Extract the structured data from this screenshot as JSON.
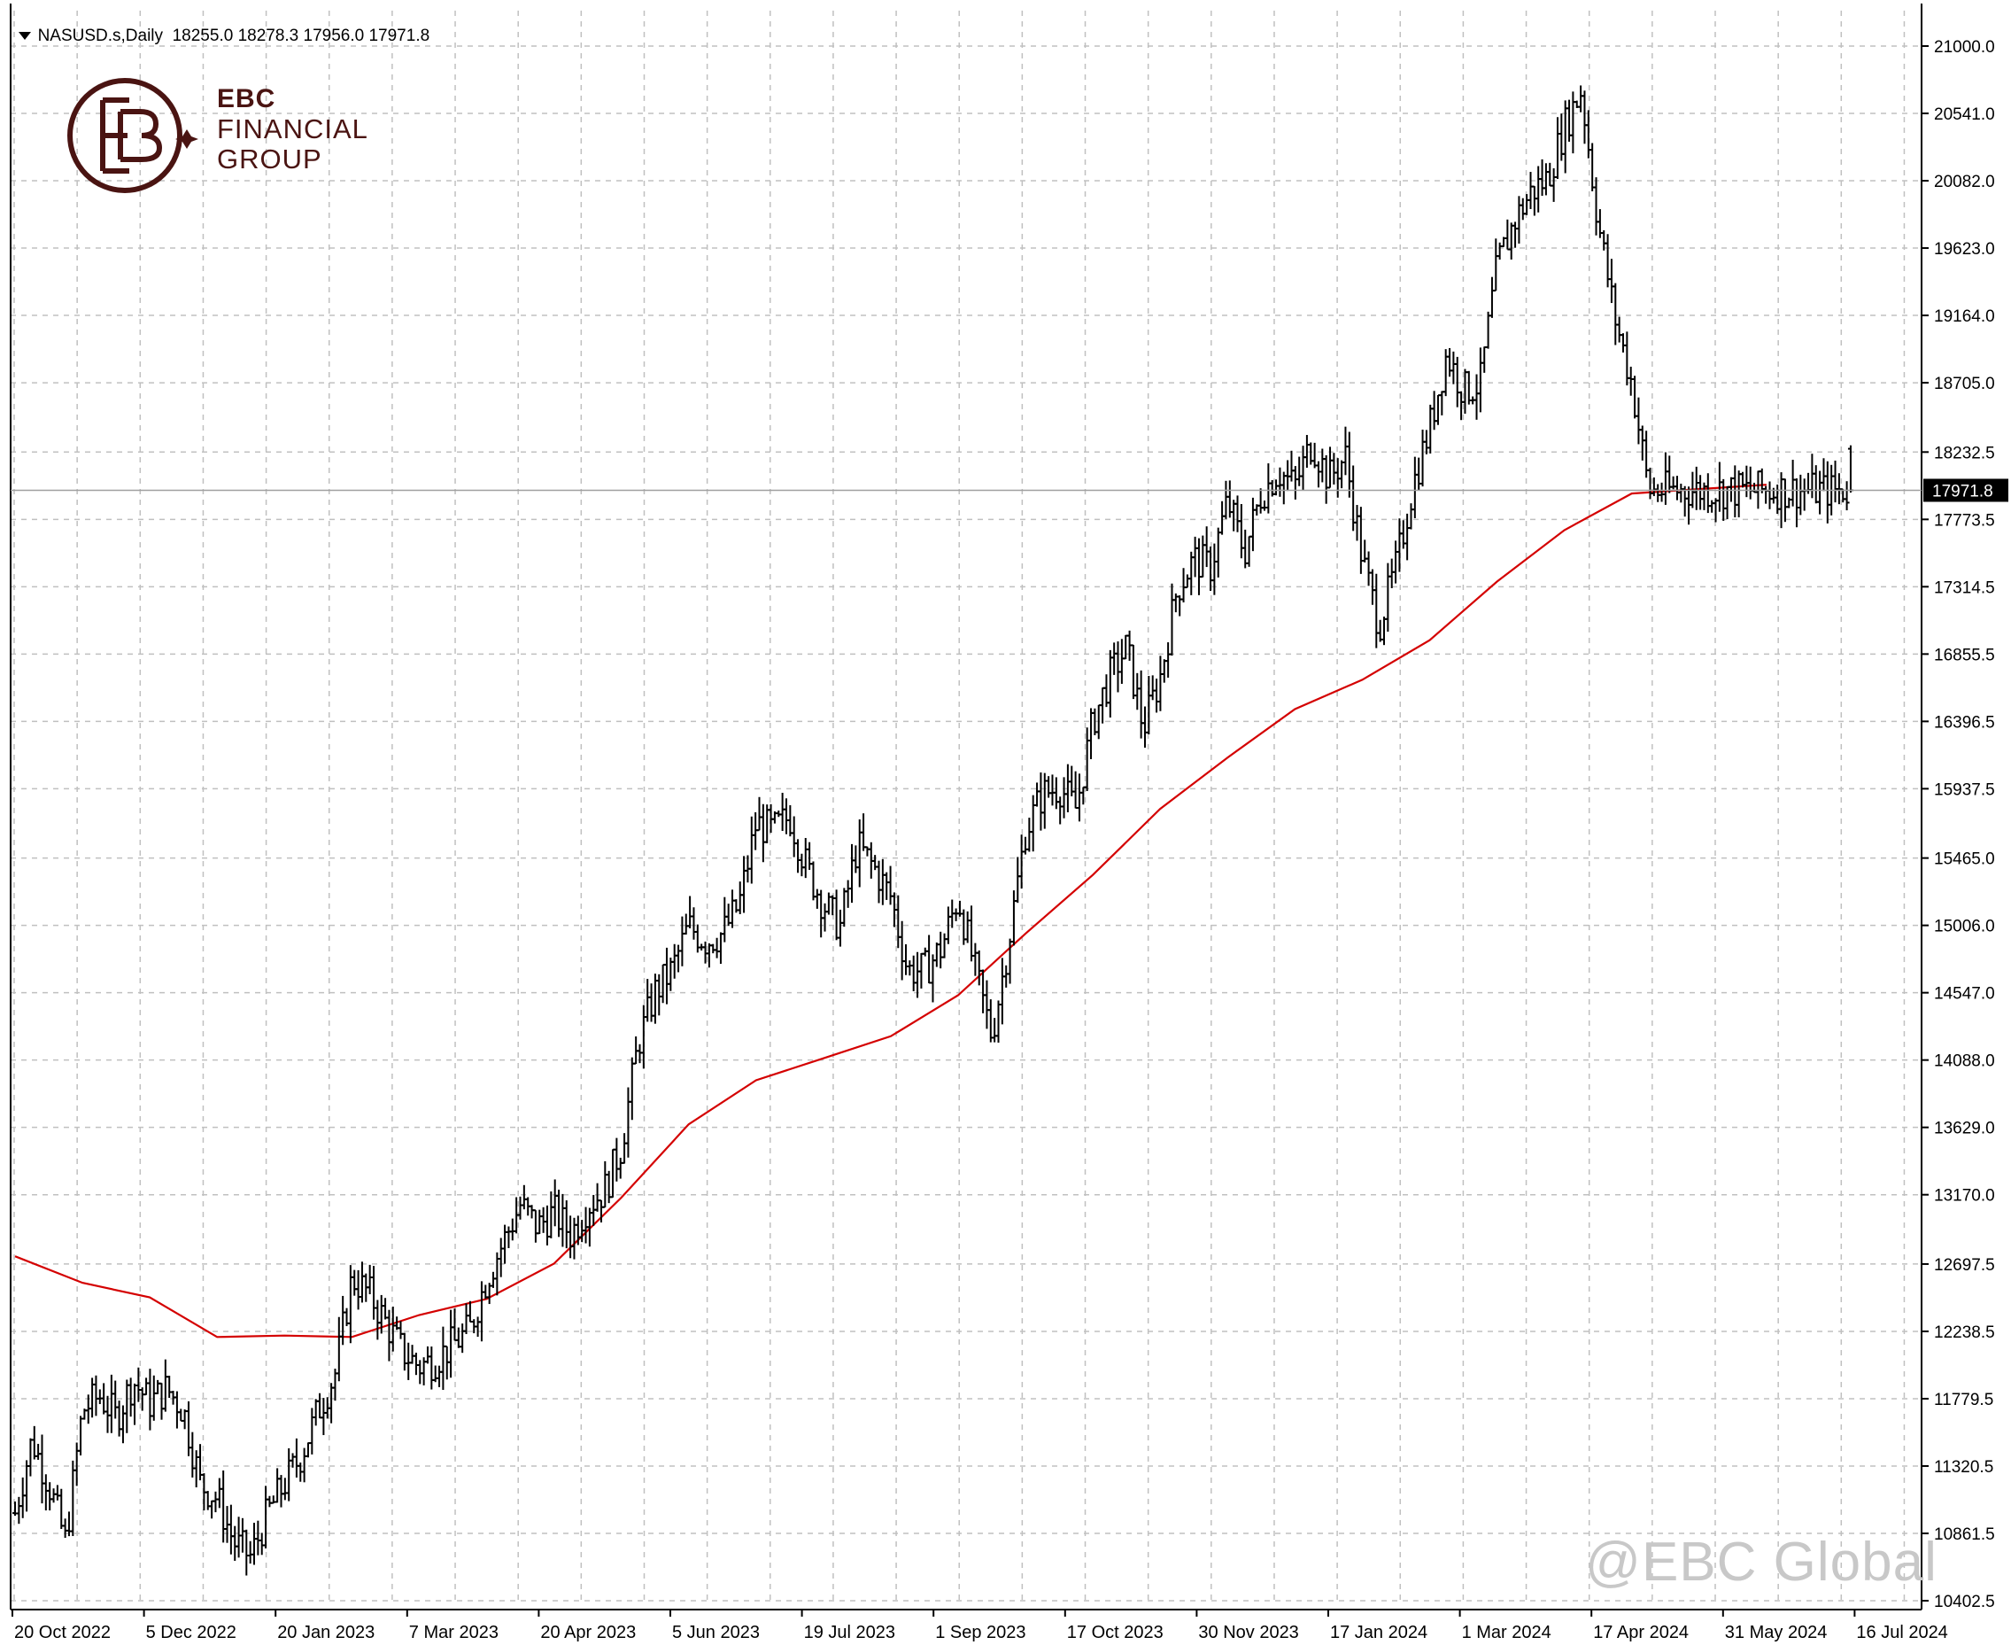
{
  "header": {
    "symbol_label": "NASUSD.s,Daily",
    "ohlc_text": "18255.0 18278.3 17956.0 17971.8"
  },
  "logo": {
    "line1": "EBC",
    "line2": "FINANCIAL",
    "line3": "GROUP"
  },
  "watermark": "@EBC Global",
  "colors": {
    "background": "#ffffff",
    "grid": "#c0c0c0",
    "bars": "#000000",
    "moving_average": "#d40000",
    "current_price_line": "#a0a0a0",
    "current_price_tag_bg": "#000000",
    "current_price_tag_text": "#ffffff",
    "brand": "#4a1412"
  },
  "chart_data": {
    "type": "line",
    "symbol": "NASUSD.s",
    "timeframe": "Daily",
    "grid": true,
    "x_tick_labels": [
      "20 Oct 2022",
      "5 Dec 2022",
      "20 Jan 2023",
      "7 Mar 2023",
      "20 Apr 2023",
      "5 Jun 2023",
      "19 Jul 2023",
      "1 Sep 2023",
      "17 Oct 2023",
      "30 Nov 2023",
      "17 Jan 2024",
      "1 Mar 2024",
      "17 Apr 2024",
      "31 May 2024",
      "16 Jul 2024"
    ],
    "y_tick_labels": [
      "21000.0",
      "20541.0",
      "20082.0",
      "19623.0",
      "19164.0",
      "18705.0",
      "18232.5",
      "17773.5",
      "17314.5",
      "16855.5",
      "16396.5",
      "15937.5",
      "15465.0",
      "15006.0",
      "14547.0",
      "14088.0",
      "13629.0",
      "13170.0",
      "12697.5",
      "12238.5",
      "11779.5",
      "11320.5",
      "10861.5",
      "10402.5"
    ],
    "ylim": [
      10402.5,
      21000.0
    ],
    "current_price": 17971.8,
    "current_price_label": "17971.8",
    "last_bar": {
      "open": 18255.0,
      "high": 18278.3,
      "low": 17956.0,
      "close": 17971.8
    },
    "series": [
      {
        "type": "ohlc",
        "x_index": [
          0,
          5,
          10,
          15,
          20,
          25,
          30,
          35,
          40,
          45,
          50,
          55,
          60,
          65,
          70,
          75,
          80,
          85,
          90,
          95,
          100,
          105,
          110,
          115,
          120,
          125,
          130,
          135,
          140,
          145,
          150,
          155,
          160,
          165,
          170,
          175,
          180,
          185,
          190,
          195,
          200,
          205,
          210,
          215,
          220,
          225,
          230,
          235,
          240,
          245,
          250,
          255,
          260,
          265,
          270,
          275,
          280,
          285,
          290,
          295,
          300,
          305,
          310,
          315,
          320,
          325,
          330,
          335,
          340,
          345,
          350,
          355,
          360,
          365,
          370,
          375,
          380,
          385,
          390,
          395,
          400,
          405,
          410,
          415,
          420,
          425,
          430,
          435,
          440,
          445,
          450,
          455,
          460,
          465,
          470,
          475,
          480,
          485,
          490,
          495,
          500,
          505,
          510,
          515,
          520,
          525,
          530,
          535,
          540,
          545
        ],
        "close": [
          11000,
          11500,
          11200,
          10800,
          11700,
          11800,
          11650,
          11900,
          11750,
          11850,
          11700,
          11200,
          11100,
          10800,
          10700,
          11000,
          11200,
          11400,
          11700,
          11950,
          12600,
          12500,
          12300,
          12100,
          12000,
          12050,
          12150,
          12250,
          12600,
          12850,
          13100,
          12950,
          13050,
          12900,
          13100,
          13200,
          13500,
          14200,
          14550,
          14700,
          15000,
          14900,
          14950,
          15150,
          15700,
          15650,
          15750,
          15400,
          15150,
          15000,
          15550,
          15400,
          15200,
          14700,
          14700,
          14850,
          15200,
          14700,
          14250,
          14900,
          15650,
          15900,
          15950,
          15800,
          16400,
          16700,
          16900,
          16350,
          16700,
          17300,
          17500,
          17450,
          17900,
          17550,
          17950,
          18100,
          18000,
          18300,
          18050,
          18200,
          17500,
          17050,
          17450,
          18000,
          18400,
          18900,
          18650,
          18700,
          19500,
          19800,
          20000,
          20100,
          20450,
          20700,
          19800,
          19150,
          18700,
          17972,
          17972,
          17972,
          17972,
          17972,
          17972,
          17972,
          17972,
          17972,
          17972,
          17972,
          17972,
          17972
        ]
      },
      {
        "type": "moving_average",
        "x_index": [
          0,
          20,
          40,
          60,
          80,
          100,
          120,
          140,
          160,
          180,
          200,
          220,
          240,
          260,
          280,
          300,
          320,
          340,
          360,
          380,
          400,
          420,
          440,
          460,
          480,
          500,
          520
        ],
        "values": [
          12750,
          12570,
          12470,
          12200,
          12210,
          12200,
          12350,
          12460,
          12700,
          13150,
          13650,
          13950,
          14100,
          14250,
          14530,
          14950,
          15350,
          15800,
          16150,
          16480,
          16680,
          16950,
          17350,
          17700,
          17950,
          17980,
          18010
        ]
      }
    ]
  }
}
